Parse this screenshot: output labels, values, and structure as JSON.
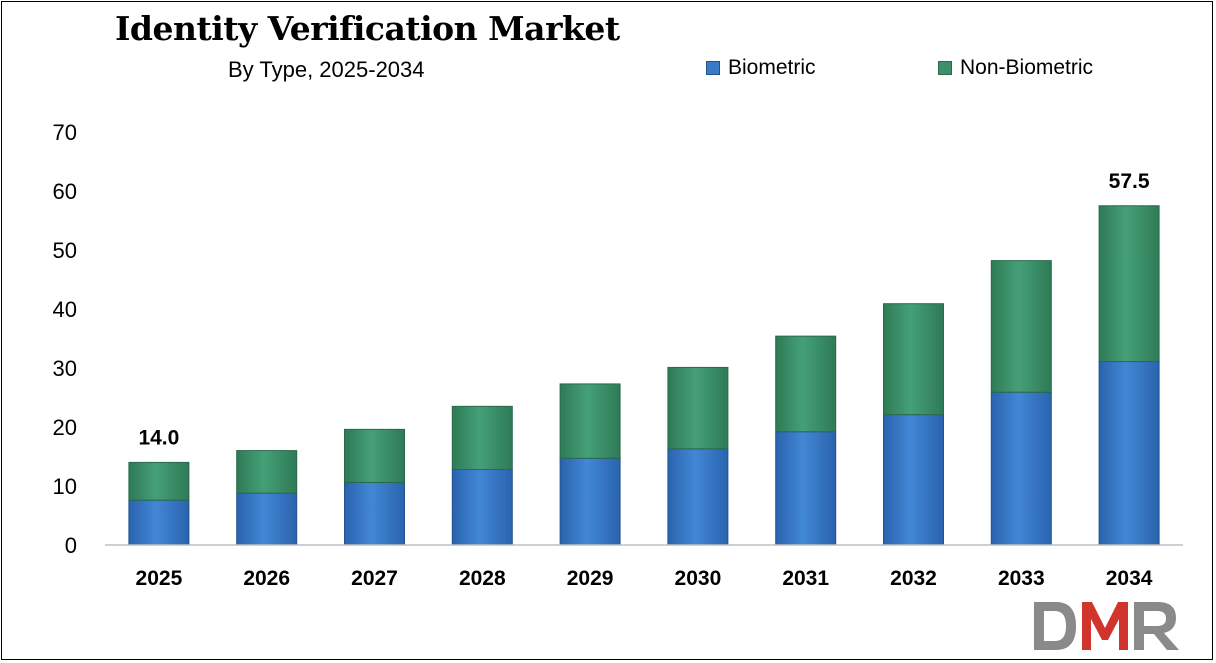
{
  "chart_data": {
    "type": "bar",
    "stacked": true,
    "title": "Identity Verification Market",
    "subtitle": "By Type, 2025-2034",
    "categories": [
      "2025",
      "2026",
      "2027",
      "2028",
      "2029",
      "2030",
      "2031",
      "2032",
      "2033",
      "2034"
    ],
    "series": [
      {
        "name": "Biometric",
        "values": [
          7.6,
          8.8,
          10.6,
          12.8,
          14.7,
          16.3,
          19.2,
          22.1,
          25.9,
          31.1
        ],
        "color": "#3a7ac7"
      },
      {
        "name": "Non-Biometric",
        "values": [
          6.4,
          7.2,
          9.0,
          10.7,
          12.6,
          13.8,
          16.2,
          18.8,
          22.3,
          26.4
        ],
        "color": "#3b9068"
      }
    ],
    "total_labels": [
      {
        "category": "2025",
        "label": "14.0"
      },
      {
        "category": "2034",
        "label": "57.5"
      }
    ],
    "yticks": [
      "0",
      "10",
      "20",
      "30",
      "40",
      "50",
      "60",
      "70"
    ],
    "ylim": [
      0,
      70
    ],
    "xlabel": "",
    "ylabel": "",
    "grid": false,
    "legend_position": "top-right"
  },
  "logo": {
    "text": "DMR",
    "colors": [
      "#8a8a8a",
      "#d0342c",
      "#8a8a8a"
    ]
  }
}
